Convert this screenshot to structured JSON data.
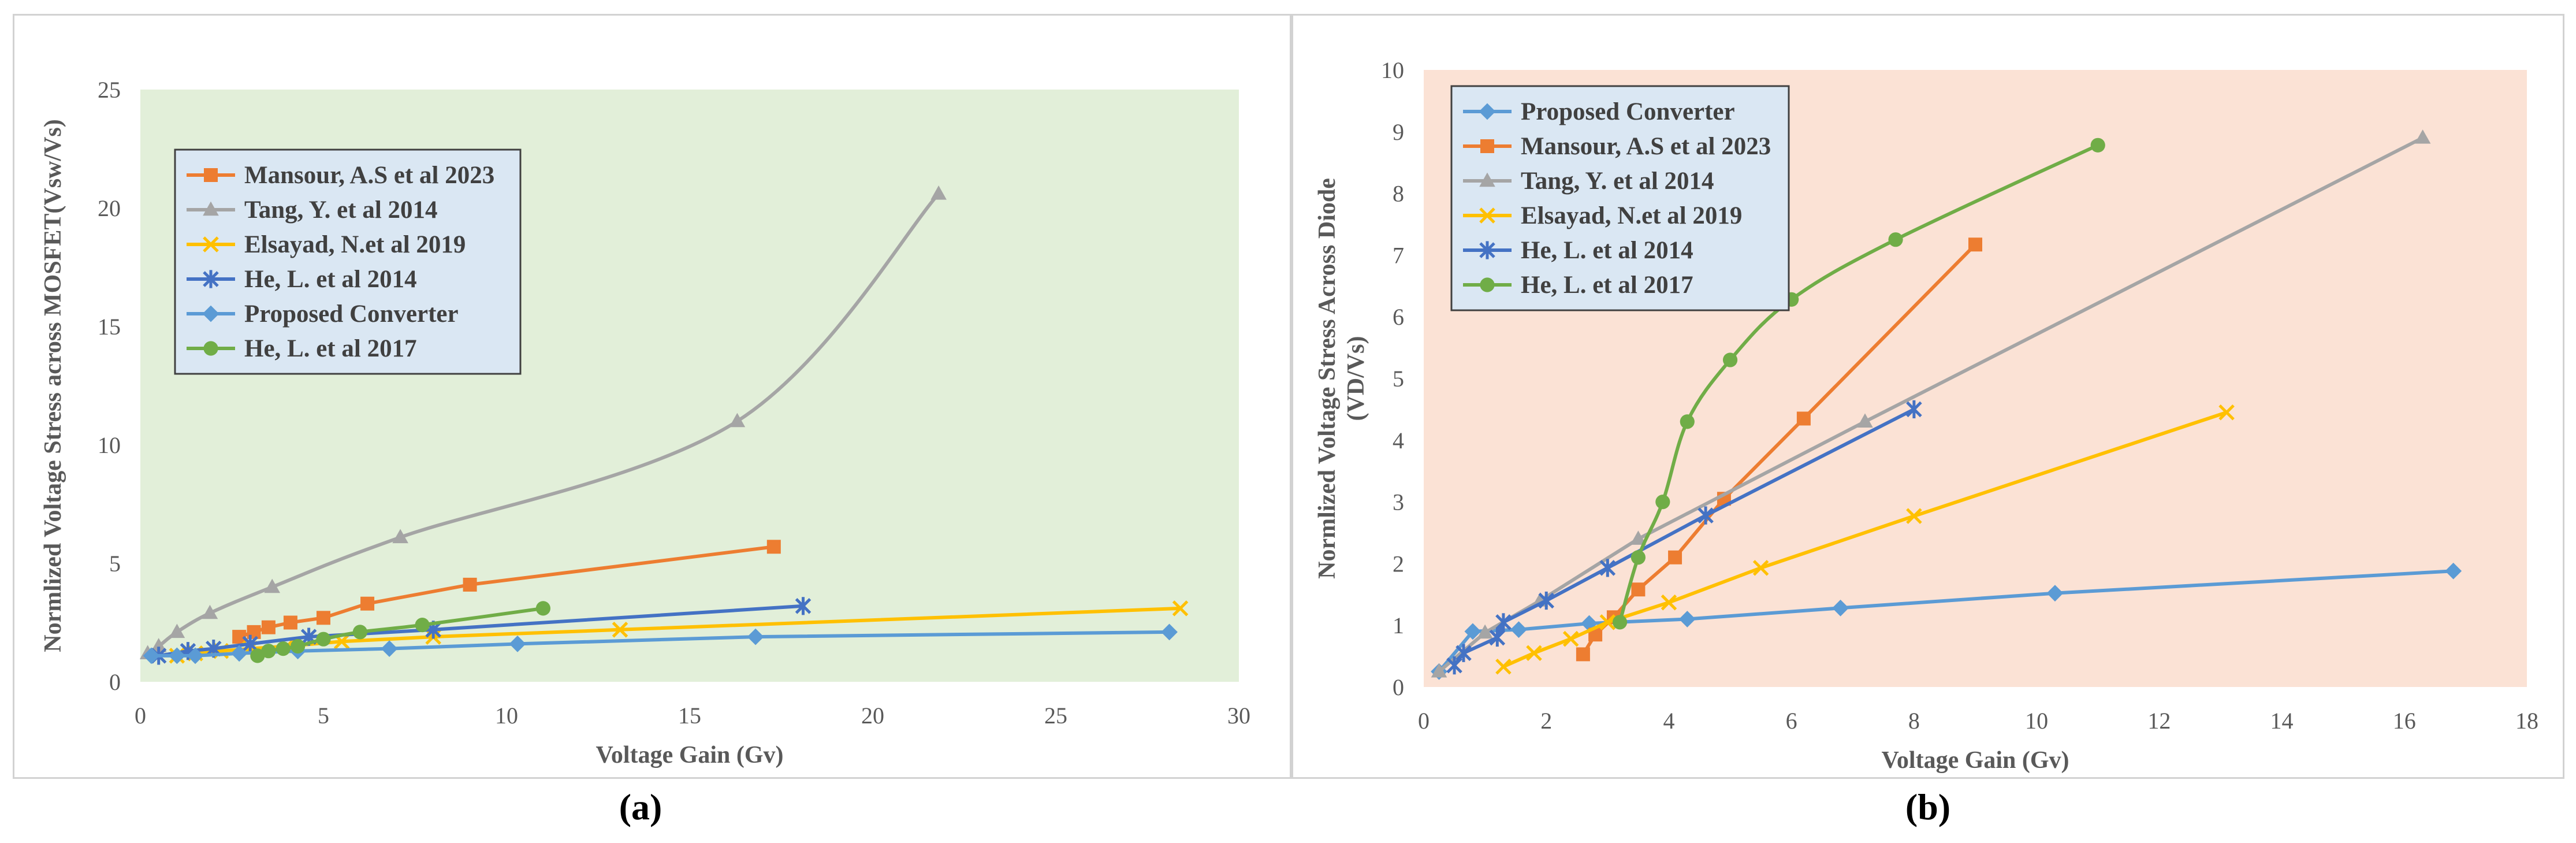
{
  "captions": {
    "a": "(a)",
    "b": "(b)"
  },
  "chart_data": [
    {
      "id": "a",
      "type": "line",
      "title": "",
      "xlabel": "Voltage Gain (Gv)",
      "ylabel": "Normlized Voltage Stress across MOSFET(Vsw/Vs)",
      "xlim": [
        0,
        30
      ],
      "ylim": [
        0,
        25
      ],
      "xticks": [
        0,
        5,
        10,
        15,
        20,
        25,
        30
      ],
      "yticks": [
        0,
        5,
        10,
        15,
        20,
        25
      ],
      "plot_bg": "#e2efd9",
      "legend_position": "top-left",
      "series": [
        {
          "name": "Mansour, A.S et al 2023",
          "color": "#ed7d31",
          "marker": "square",
          "smooth": false,
          "x": [
            2.7,
            3.1,
            3.5,
            4.1,
            5,
            6.2,
            9,
            17.3
          ],
          "y": [
            1.9,
            2.1,
            2.3,
            2.5,
            2.7,
            3.3,
            4.1,
            5.7
          ]
        },
        {
          "name": "Tang, Y. et al 2014",
          "color": "#a5a5a5",
          "marker": "triangle",
          "smooth": true,
          "x": [
            0.2,
            0.5,
            1,
            1.9,
            3.6,
            7.1,
            16.3,
            21.8
          ],
          "y": [
            1.2,
            1.5,
            2.1,
            2.9,
            4,
            6.1,
            11,
            20.6
          ]
        },
        {
          "name": "Elsayad, N.et al 2019",
          "color": "#ffc000",
          "marker": "x",
          "smooth": false,
          "x": [
            1,
            1.5,
            2.2,
            3,
            4,
            5.5,
            8,
            13.1,
            28.4
          ],
          "y": [
            1.1,
            1.2,
            1.3,
            1.4,
            1.5,
            1.7,
            1.9,
            2.2,
            3.1
          ]
        },
        {
          "name": "He, L. et al 2014",
          "color": "#4472c4",
          "marker": "star",
          "smooth": false,
          "x": [
            0.5,
            1.3,
            2,
            3,
            4.6,
            8,
            18.1
          ],
          "y": [
            1.1,
            1.3,
            1.4,
            1.6,
            1.9,
            2.2,
            3.2
          ]
        },
        {
          "name": "Proposed Converter",
          "color": "#5b9bd5",
          "marker": "diamond",
          "smooth": false,
          "x": [
            0.3,
            1,
            1.5,
            2.7,
            4.3,
            6.8,
            10.3,
            16.8,
            28.1
          ],
          "y": [
            1.1,
            1.1,
            1.1,
            1.2,
            1.3,
            1.4,
            1.6,
            1.9,
            2.1
          ]
        },
        {
          "name": "He, L. et al 2017",
          "color": "#70ad47",
          "marker": "circle",
          "smooth": true,
          "x": [
            3.2,
            3.5,
            3.9,
            4.3,
            5,
            6,
            7.7,
            11
          ],
          "y": [
            1.1,
            1.3,
            1.4,
            1.5,
            1.8,
            2.1,
            2.4,
            3.1
          ]
        }
      ]
    },
    {
      "id": "b",
      "type": "line",
      "title": "",
      "xlabel": "Voltage Gain (Gv)",
      "ylabel_line1": "Normlized Voltage Stress Across Diode",
      "ylabel_line2": "(VD/Vs)",
      "xlim": [
        0,
        18
      ],
      "ylim": [
        0,
        10
      ],
      "xticks": [
        0,
        2,
        4,
        6,
        8,
        10,
        12,
        14,
        16,
        18
      ],
      "yticks": [
        0,
        1,
        2,
        3,
        4,
        5,
        6,
        7,
        8,
        9,
        10
      ],
      "plot_bg": "#fbe2d5",
      "legend_position": "top-left",
      "series": [
        {
          "name": "Proposed Converter",
          "color": "#5b9bd5",
          "marker": "diamond",
          "smooth": false,
          "x": [
            0.25,
            0.8,
            1.55,
            2.7,
            4.3,
            6.8,
            10.3,
            16.8
          ],
          "y": [
            0.25,
            0.9,
            0.93,
            1.03,
            1.1,
            1.28,
            1.52,
            1.88
          ]
        },
        {
          "name": "Mansour, A.S et al 2023",
          "color": "#ed7d31",
          "marker": "square",
          "smooth": false,
          "x": [
            2.6,
            2.8,
            3.1,
            3.5,
            4.1,
            4.9,
            6.2,
            9
          ],
          "y": [
            0.53,
            0.85,
            1.13,
            1.58,
            2.1,
            3.05,
            4.35,
            7.17
          ]
        },
        {
          "name": "Tang, Y. et al 2014",
          "color": "#a5a5a5",
          "marker": "triangle",
          "smooth": false,
          "x": [
            0.25,
            1,
            1.9,
            3.5,
            7.2,
            16.3
          ],
          "y": [
            0.25,
            0.88,
            1.4,
            2.4,
            4.3,
            8.9
          ]
        },
        {
          "name": "Elsayad, N.et al 2019",
          "color": "#ffc000",
          "marker": "x",
          "smooth": false,
          "x": [
            1.3,
            1.8,
            2.4,
            3,
            4,
            5.5,
            8,
            13.1
          ],
          "y": [
            0.33,
            0.55,
            0.78,
            1.05,
            1.37,
            1.93,
            2.77,
            4.45
          ]
        },
        {
          "name": "He, L. et al 2014",
          "color": "#4472c4",
          "marker": "star",
          "smooth": false,
          "x": [
            0.5,
            0.65,
            1.2,
            1.3,
            2,
            3,
            4.6,
            8
          ],
          "y": [
            0.35,
            0.55,
            0.8,
            1.05,
            1.4,
            1.93,
            2.78,
            4.5
          ]
        },
        {
          "name": "He, L. et al 2017",
          "color": "#70ad47",
          "marker": "circle",
          "smooth": true,
          "x": [
            3.2,
            3.5,
            3.9,
            4.3,
            5,
            6,
            7.7,
            11
          ],
          "y": [
            1.05,
            2.1,
            3,
            4.3,
            5.3,
            6.28,
            7.25,
            8.78
          ]
        }
      ]
    }
  ]
}
